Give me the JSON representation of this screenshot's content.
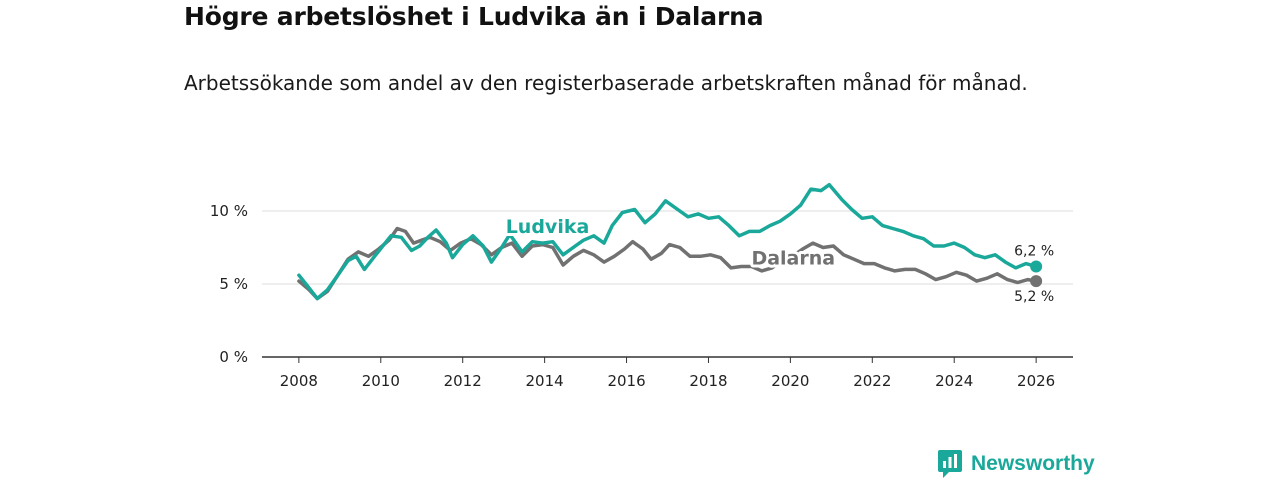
{
  "title": "Högre arbetslöshet i Ludvika än i Dalarna",
  "subtitle": "Arbetssökande som andel av den registerbaserade arbetskraften månad för månad.",
  "brand": {
    "name": "Newsworthy",
    "icon": "newsworthy-logo-icon"
  },
  "colors": {
    "ludvika": "#1aa89a",
    "dalarna": "#717171",
    "grid": "#dddddd",
    "axis": "#333333"
  },
  "chart_data": {
    "type": "line",
    "title": "Högre arbetslöshet i Ludvika än i Dalarna",
    "xlabel": "",
    "ylabel": "",
    "xlim": [
      2007.1,
      2026.9
    ],
    "ylim": [
      0,
      10
    ],
    "grid": true,
    "x_ticks": [
      {
        "value": 2008,
        "label": "2008"
      },
      {
        "value": 2010,
        "label": "2010"
      },
      {
        "value": 2012,
        "label": "2012"
      },
      {
        "value": 2014,
        "label": "2014"
      },
      {
        "value": 2016,
        "label": "2016"
      },
      {
        "value": 2018,
        "label": "2018"
      },
      {
        "value": 2020,
        "label": "2020"
      },
      {
        "value": 2022,
        "label": "2022"
      },
      {
        "value": 2024,
        "label": "2024"
      },
      {
        "value": 2026,
        "label": "2026"
      }
    ],
    "y_ticks": [
      {
        "value": 0,
        "label": "0 %"
      },
      {
        "value": 5,
        "label": "5 %"
      },
      {
        "value": 10,
        "label": "10 %"
      }
    ],
    "series": [
      {
        "name": "Dalarna",
        "label": "Dalarna",
        "end_label": "5,2 %",
        "points": [
          [
            2008.0,
            5.2
          ],
          [
            2008.25,
            4.6
          ],
          [
            2008.45,
            4.0
          ],
          [
            2008.7,
            4.5
          ],
          [
            2008.95,
            5.6
          ],
          [
            2009.2,
            6.7
          ],
          [
            2009.45,
            7.2
          ],
          [
            2009.7,
            6.9
          ],
          [
            2009.95,
            7.4
          ],
          [
            2010.2,
            8.0
          ],
          [
            2010.4,
            8.8
          ],
          [
            2010.6,
            8.6
          ],
          [
            2010.8,
            7.8
          ],
          [
            2011.0,
            8.0
          ],
          [
            2011.2,
            8.2
          ],
          [
            2011.45,
            7.9
          ],
          [
            2011.7,
            7.3
          ],
          [
            2011.95,
            7.8
          ],
          [
            2012.2,
            8.1
          ],
          [
            2012.45,
            7.7
          ],
          [
            2012.7,
            7.0
          ],
          [
            2012.95,
            7.5
          ],
          [
            2013.2,
            7.8
          ],
          [
            2013.45,
            6.9
          ],
          [
            2013.7,
            7.6
          ],
          [
            2013.95,
            7.7
          ],
          [
            2014.2,
            7.5
          ],
          [
            2014.45,
            6.3
          ],
          [
            2014.7,
            6.9
          ],
          [
            2014.95,
            7.3
          ],
          [
            2015.2,
            7.0
          ],
          [
            2015.45,
            6.5
          ],
          [
            2015.7,
            6.9
          ],
          [
            2015.95,
            7.4
          ],
          [
            2016.15,
            7.9
          ],
          [
            2016.4,
            7.4
          ],
          [
            2016.6,
            6.7
          ],
          [
            2016.85,
            7.1
          ],
          [
            2017.05,
            7.7
          ],
          [
            2017.3,
            7.5
          ],
          [
            2017.55,
            6.9
          ],
          [
            2017.8,
            6.9
          ],
          [
            2018.05,
            7.0
          ],
          [
            2018.3,
            6.8
          ],
          [
            2018.55,
            6.1
          ],
          [
            2018.8,
            6.2
          ],
          [
            2019.05,
            6.2
          ],
          [
            2019.3,
            5.9
          ],
          [
            2019.55,
            6.1
          ],
          [
            2019.8,
            6.6
          ],
          [
            2020.05,
            6.9
          ],
          [
            2020.3,
            7.4
          ],
          [
            2020.55,
            7.8
          ],
          [
            2020.8,
            7.5
          ],
          [
            2021.05,
            7.6
          ],
          [
            2021.3,
            7.0
          ],
          [
            2021.55,
            6.7
          ],
          [
            2021.8,
            6.4
          ],
          [
            2022.05,
            6.4
          ],
          [
            2022.3,
            6.1
          ],
          [
            2022.55,
            5.9
          ],
          [
            2022.8,
            6.0
          ],
          [
            2023.05,
            6.0
          ],
          [
            2023.3,
            5.7
          ],
          [
            2023.55,
            5.3
          ],
          [
            2023.8,
            5.5
          ],
          [
            2024.05,
            5.8
          ],
          [
            2024.3,
            5.6
          ],
          [
            2024.55,
            5.2
          ],
          [
            2024.8,
            5.4
          ],
          [
            2025.05,
            5.7
          ],
          [
            2025.3,
            5.3
          ],
          [
            2025.55,
            5.1
          ],
          [
            2025.8,
            5.3
          ],
          [
            2026.0,
            5.2
          ]
        ]
      },
      {
        "name": "Ludvika",
        "label": "Ludvika",
        "end_label": "6,2 %",
        "points": [
          [
            2008.0,
            5.6
          ],
          [
            2008.2,
            4.9
          ],
          [
            2008.45,
            4.0
          ],
          [
            2008.7,
            4.6
          ],
          [
            2008.95,
            5.6
          ],
          [
            2009.2,
            6.6
          ],
          [
            2009.4,
            6.9
          ],
          [
            2009.6,
            6.0
          ],
          [
            2009.85,
            6.9
          ],
          [
            2010.05,
            7.6
          ],
          [
            2010.25,
            8.3
          ],
          [
            2010.5,
            8.2
          ],
          [
            2010.75,
            7.3
          ],
          [
            2010.95,
            7.6
          ],
          [
            2011.15,
            8.2
          ],
          [
            2011.35,
            8.7
          ],
          [
            2011.6,
            7.8
          ],
          [
            2011.75,
            6.8
          ],
          [
            2012.0,
            7.7
          ],
          [
            2012.25,
            8.3
          ],
          [
            2012.5,
            7.6
          ],
          [
            2012.7,
            6.5
          ],
          [
            2012.95,
            7.5
          ],
          [
            2013.15,
            8.4
          ],
          [
            2013.45,
            7.2
          ],
          [
            2013.7,
            7.9
          ],
          [
            2013.95,
            7.8
          ],
          [
            2014.2,
            7.9
          ],
          [
            2014.45,
            7.0
          ],
          [
            2014.75,
            7.6
          ],
          [
            2014.95,
            8.0
          ],
          [
            2015.2,
            8.3
          ],
          [
            2015.45,
            7.8
          ],
          [
            2015.65,
            9.0
          ],
          [
            2015.9,
            9.9
          ],
          [
            2016.2,
            10.1
          ],
          [
            2016.45,
            9.2
          ],
          [
            2016.7,
            9.8
          ],
          [
            2016.95,
            10.7
          ],
          [
            2017.25,
            10.1
          ],
          [
            2017.5,
            9.6
          ],
          [
            2017.75,
            9.8
          ],
          [
            2018.0,
            9.5
          ],
          [
            2018.25,
            9.6
          ],
          [
            2018.5,
            9.0
          ],
          [
            2018.75,
            8.3
          ],
          [
            2019.0,
            8.6
          ],
          [
            2019.25,
            8.6
          ],
          [
            2019.5,
            9.0
          ],
          [
            2019.75,
            9.3
          ],
          [
            2020.0,
            9.8
          ],
          [
            2020.25,
            10.4
          ],
          [
            2020.5,
            11.5
          ],
          [
            2020.75,
            11.4
          ],
          [
            2020.95,
            11.8
          ],
          [
            2021.25,
            10.8
          ],
          [
            2021.5,
            10.1
          ],
          [
            2021.75,
            9.5
          ],
          [
            2022.0,
            9.6
          ],
          [
            2022.25,
            9.0
          ],
          [
            2022.5,
            8.8
          ],
          [
            2022.75,
            8.6
          ],
          [
            2023.0,
            8.3
          ],
          [
            2023.25,
            8.1
          ],
          [
            2023.5,
            7.6
          ],
          [
            2023.75,
            7.6
          ],
          [
            2024.0,
            7.8
          ],
          [
            2024.25,
            7.5
          ],
          [
            2024.5,
            7.0
          ],
          [
            2024.75,
            6.8
          ],
          [
            2025.0,
            7.0
          ],
          [
            2025.25,
            6.5
          ],
          [
            2025.5,
            6.1
          ],
          [
            2025.75,
            6.4
          ],
          [
            2026.0,
            6.2
          ]
        ]
      }
    ]
  }
}
